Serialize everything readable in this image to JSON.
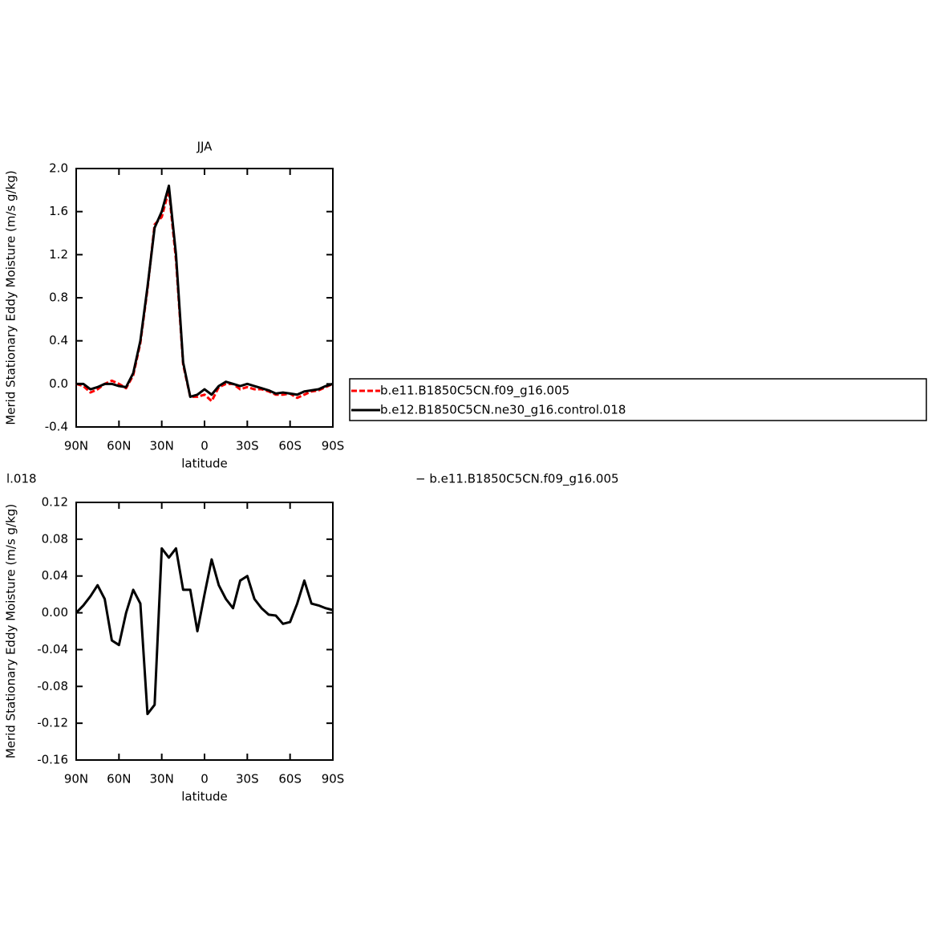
{
  "chart_data": [
    {
      "type": "line",
      "title": "JJA",
      "xlabel": "latitude",
      "ylabel": "Merid Stationary Eddy Moisture (m/s g/kg)",
      "x": [
        90,
        85,
        80,
        75,
        70,
        65,
        60,
        55,
        50,
        45,
        40,
        35,
        30,
        25,
        20,
        15,
        10,
        5,
        0,
        -5,
        -10,
        -15,
        -20,
        -25,
        -30,
        -35,
        -40,
        -45,
        -50,
        -55,
        -60,
        -65,
        -70,
        -75,
        -80,
        -85,
        -90
      ],
      "series": [
        {
          "name": "b.e11.B1850C5CN.f09_g16.005",
          "color": "#ff0000",
          "dash": true,
          "values": [
            0.0,
            -0.02,
            -0.08,
            -0.05,
            0.0,
            0.03,
            0.0,
            -0.04,
            0.08,
            0.38,
            0.88,
            1.48,
            1.55,
            1.8,
            1.15,
            0.18,
            -0.12,
            -0.12,
            -0.1,
            -0.16,
            -0.03,
            0.0,
            0.0,
            -0.05,
            -0.03,
            -0.05,
            -0.05,
            -0.07,
            -0.1,
            -0.1,
            -0.09,
            -0.13,
            -0.1,
            -0.07,
            -0.06,
            -0.03,
            0.0
          ]
        },
        {
          "name": "b.e12.B1850C5CN.ne30_g16.control.018",
          "color": "#000000",
          "dash": false,
          "values": [
            0.0,
            0.0,
            -0.05,
            -0.03,
            0.0,
            0.0,
            -0.02,
            -0.03,
            0.1,
            0.4,
            0.9,
            1.45,
            1.6,
            1.84,
            1.2,
            0.2,
            -0.12,
            -0.1,
            -0.05,
            -0.1,
            -0.02,
            0.02,
            0.0,
            -0.02,
            0.0,
            -0.02,
            -0.04,
            -0.06,
            -0.09,
            -0.08,
            -0.09,
            -0.1,
            -0.07,
            -0.06,
            -0.05,
            -0.02,
            0.0
          ]
        }
      ],
      "xlim": [
        90,
        -90
      ],
      "xticks": [
        {
          "value": 90,
          "label": "90N"
        },
        {
          "value": 60,
          "label": "60N"
        },
        {
          "value": 30,
          "label": "30N"
        },
        0,
        {
          "value": -30,
          "label": "30S"
        },
        {
          "value": -60,
          "label": "60S"
        },
        {
          "value": -90,
          "label": "90S"
        }
      ],
      "ylim": [
        -0.4,
        2.0
      ],
      "yticks": [
        {
          "value": -0.4,
          "label": "-0.4"
        },
        {
          "value": 0.0,
          "label": "0.0"
        },
        0.4,
        0.8,
        {
          "value": 1.2,
          "label": "1.2"
        },
        {
          "value": 1.6,
          "label": "1.6"
        },
        {
          "value": 2.0,
          "label": "2.0"
        }
      ],
      "legend": "right"
    },
    {
      "type": "line",
      "xlabel": "latitude",
      "ylabel": "Merid Stationary Eddy Moisture (m/s g/kg)",
      "annotations": [
        "l.018",
        "− b.e11.B1850C5CN.f09_g16.005"
      ],
      "x": [
        90,
        85,
        80,
        75,
        70,
        65,
        60,
        55,
        50,
        45,
        40,
        35,
        30,
        25,
        20,
        15,
        10,
        5,
        0,
        -5,
        -10,
        -15,
        -20,
        -25,
        -30,
        -35,
        -40,
        -45,
        -50,
        -55,
        -60,
        -65,
        -70,
        -75,
        -80,
        -85,
        -90
      ],
      "series": [
        {
          "color": "#000000",
          "dash": false,
          "values": [
            0.0,
            0.008,
            0.018,
            0.03,
            0.015,
            -0.03,
            -0.035,
            0.0,
            0.025,
            0.01,
            -0.11,
            -0.1,
            0.07,
            0.06,
            0.07,
            0.025,
            0.025,
            -0.02,
            0.02,
            0.058,
            0.03,
            0.015,
            0.005,
            0.035,
            0.04,
            0.015,
            0.005,
            -0.002,
            -0.003,
            -0.012,
            -0.01,
            0.01,
            0.035,
            0.01,
            0.008,
            0.005,
            0.003
          ]
        }
      ],
      "xlim": [
        90,
        -90
      ],
      "xticks": [
        {
          "value": 90,
          "label": "90N"
        },
        {
          "value": 60,
          "label": "60N"
        },
        {
          "value": 30,
          "label": "30N"
        },
        0,
        {
          "value": -30,
          "label": "30S"
        },
        {
          "value": -60,
          "label": "60S"
        },
        {
          "value": -90,
          "label": "90S"
        }
      ],
      "ylim": [
        -0.16,
        0.12
      ],
      "yticks": [
        -0.16,
        -0.12,
        -0.08,
        -0.04,
        {
          "value": 0.0,
          "label": "0.00"
        },
        0.04,
        0.08,
        0.12
      ]
    }
  ]
}
